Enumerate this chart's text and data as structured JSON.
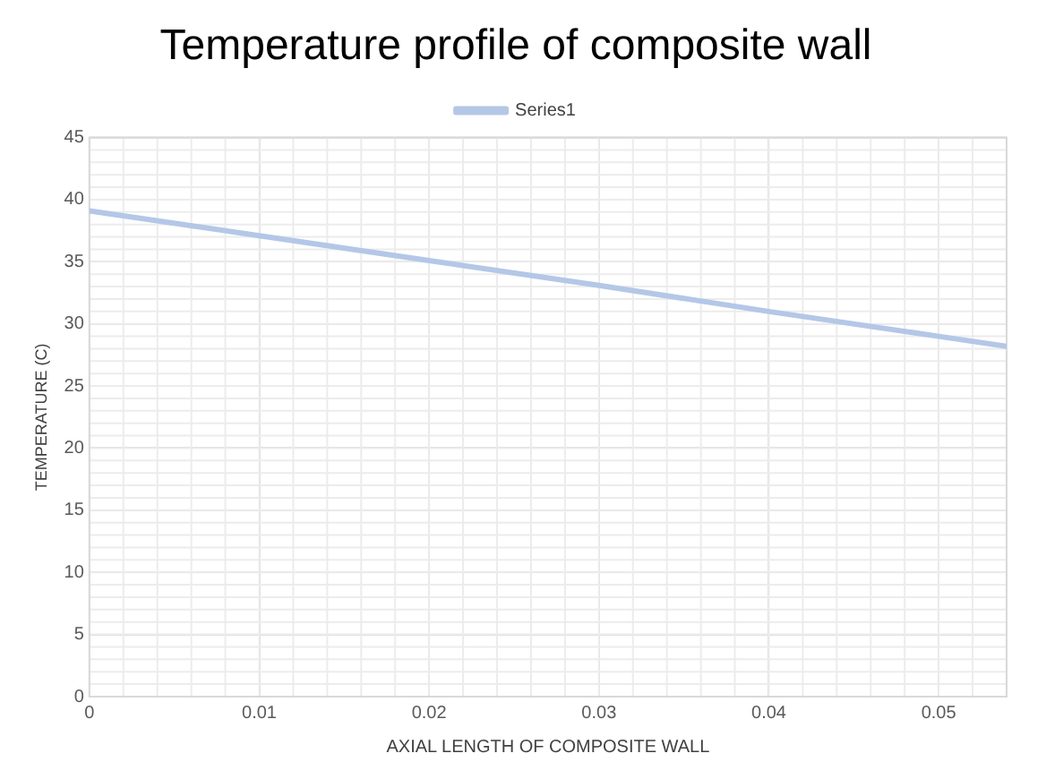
{
  "chart_data": {
    "type": "line",
    "title": "Temperature profile of composite wall",
    "xlabel": "AXIAL LENGTH OF COMPOSITE WALL",
    "ylabel": "TEMPERATURE (C)",
    "x": [
      0,
      0.01,
      0.02,
      0.03,
      0.04,
      0.05,
      0.054
    ],
    "series": [
      {
        "name": "Series1",
        "color": "#b4c7e7",
        "values": [
          39.1,
          37.1,
          35.1,
          33.1,
          31.0,
          29.0,
          28.2
        ]
      }
    ],
    "xlim": [
      0,
      0.054
    ],
    "xticks": [
      0,
      0.01,
      0.02,
      0.03,
      0.04,
      0.05
    ],
    "ylim": [
      0,
      45
    ],
    "yticks": [
      0,
      5,
      10,
      15,
      20,
      25,
      30,
      35,
      40,
      45
    ],
    "grid": true,
    "legend": "top",
    "marker": "none",
    "line_style": "solid"
  }
}
